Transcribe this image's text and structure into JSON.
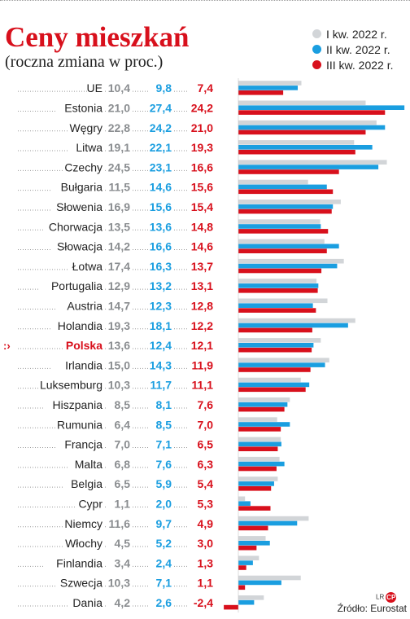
{
  "header": {
    "title": "Ceny mieszkań",
    "subtitle": "(roczna zmiana w proc.)"
  },
  "legend": {
    "items": [
      {
        "label": "I kw. 2022 r.",
        "color": "#d2d5d8"
      },
      {
        "label": "II kw. 2022 r.",
        "color": "#1a9ee0"
      },
      {
        "label": "III kw. 2022 r.",
        "color": "#d8101c"
      }
    ]
  },
  "footer": {
    "logo_text": "LR",
    "logo_badge": "CP",
    "source": "Źródło: Eurostat"
  },
  "highlight_marker": ":›",
  "chart_data": {
    "type": "bar",
    "orientation": "horizontal",
    "highlight": "Polska",
    "categories": [
      "UE",
      "Estonia",
      "Węgry",
      "Litwa",
      "Czechy",
      "Bułgaria",
      "Słowenia",
      "Chorwacja",
      "Słowacja",
      "Łotwa",
      "Portugalia",
      "Austria",
      "Holandia",
      "Polska",
      "Irlandia",
      "Luksemburg",
      "Hiszpania",
      "Rumunia",
      "Francja",
      "Malta",
      "Belgia",
      "Cypr",
      "Niemcy",
      "Włochy",
      "Finlandia",
      "Szwecja",
      "Dania"
    ],
    "series": [
      {
        "name": "I kw. 2022 r.",
        "color": "#d2d5d8",
        "label_color": "#8a8d90",
        "values": [
          10.4,
          21.0,
          22.8,
          19.1,
          24.5,
          11.5,
          16.9,
          13.5,
          14.2,
          17.4,
          12.9,
          14.7,
          19.3,
          13.6,
          15.0,
          10.3,
          8.5,
          6.4,
          7.0,
          6.8,
          6.5,
          1.1,
          11.6,
          4.5,
          3.4,
          10.3,
          4.2
        ],
        "labels": [
          "10,4",
          "21,0",
          "22,8",
          "19,1",
          "24,5",
          "11,5",
          "16,9",
          "13,5",
          "14,2",
          "17,4",
          "12,9",
          "14,7",
          "19,3",
          "13,6",
          "15,0",
          "10,3",
          "8,5",
          "6,4",
          "7,0",
          "6,8",
          "6,5",
          "1,1",
          "11,6",
          "4,5",
          "3,4",
          "10,3",
          "4,2"
        ]
      },
      {
        "name": "II kw. 2022 r.",
        "color": "#1a9ee0",
        "label_color": "#1a9ee0",
        "values": [
          9.8,
          27.4,
          24.2,
          22.1,
          23.1,
          14.6,
          15.6,
          13.6,
          16.6,
          16.3,
          13.2,
          12.3,
          18.1,
          12.4,
          14.3,
          11.7,
          8.1,
          8.5,
          7.1,
          7.6,
          5.9,
          2.0,
          9.7,
          5.2,
          2.4,
          7.1,
          2.6
        ],
        "labels": [
          "9,8",
          "27,4",
          "24,2",
          "22,1",
          "23,1",
          "14,6",
          "15,6",
          "13,6",
          "16,6",
          "16,3",
          "13,2",
          "12,3",
          "18,1",
          "12,4",
          "14,3",
          "11,7",
          "8,1",
          "8,5",
          "7,1",
          "7,6",
          "5,9",
          "2,0",
          "9,7",
          "5,2",
          "2,4",
          "7,1",
          "2,6"
        ]
      },
      {
        "name": "III kw. 2022 r.",
        "color": "#d8101c",
        "label_color": "#d8101c",
        "values": [
          7.4,
          24.2,
          21.0,
          19.3,
          16.6,
          15.6,
          15.4,
          14.8,
          14.6,
          13.7,
          13.1,
          12.8,
          12.2,
          12.1,
          11.9,
          11.1,
          7.6,
          7.0,
          6.5,
          6.3,
          5.4,
          5.3,
          4.9,
          3.0,
          1.3,
          1.1,
          -2.4
        ],
        "labels": [
          "7,4",
          "24,2",
          "21,0",
          "19,3",
          "16,6",
          "15,6",
          "15,4",
          "14,8",
          "14,6",
          "13,7",
          "13,1",
          "12,8",
          "12,2",
          "12,1",
          "11,9",
          "11,1",
          "7,6",
          "7,0",
          "6,5",
          "6,3",
          "5,4",
          "5,3",
          "4,9",
          "3,0",
          "1,3",
          "1,1",
          "-2,4"
        ]
      }
    ],
    "xlim": [
      -2.4,
      27.4
    ],
    "grid": false,
    "legend_position": "top-right"
  }
}
